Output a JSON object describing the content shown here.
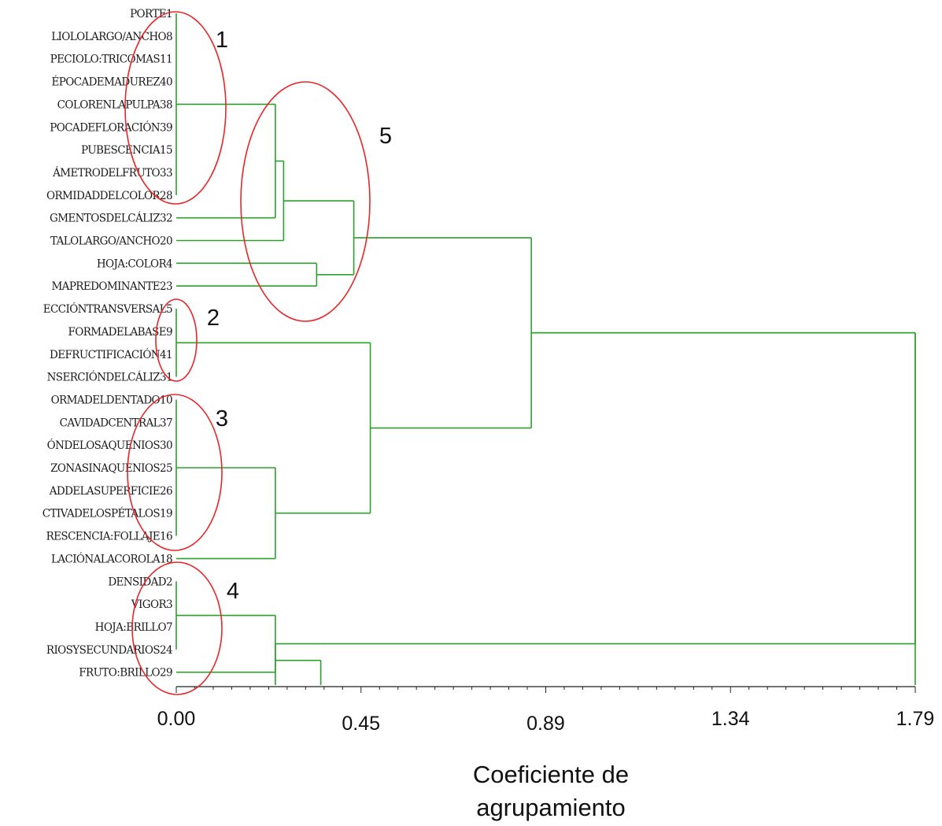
{
  "chart_data": {
    "type": "dendrogram",
    "xlabel_lines": [
      "Coeficiente de",
      "agrupamiento"
    ],
    "xlim": [
      0,
      1.79
    ],
    "x_ticks": [
      "0.00",
      "0.45",
      "0.89",
      "1.34",
      "1.79"
    ],
    "line_color": "#2ca02c",
    "circle_color": "#e8262a",
    "leaves": [
      "PORTE1",
      "LIOLOLARGO/ANCHO8",
      "PECIOLO:TRICOMAS11",
      "ÉPOCADEMADUREZ40",
      "COLORENLAPULPA38",
      "POCADEFLORACIÓN39",
      "PUBESCENCIA15",
      "ÁMETRODELFRUTO33",
      "ORMIDADDELCOLOR28",
      "GMENTOSDELCÁLIZ32",
      "TALOLARGO/ANCHO20",
      "HOJA:COLOR4",
      "MAPREDOMINANTE23",
      "ECCIÓNTRANSVERSAL5",
      "FORMADELABASE9",
      "DEFRUCTIFICACIÓN41",
      "NSERCIÓNDELCÁLIZ31",
      "ORMADELDENTADO10",
      "CAVIDADCENTRAL37",
      "ÓNDELOSAQUENIOS30",
      "ZONASINAQUENIOS25",
      "ADDELASUPERFICIE26",
      "CTIVADELOSPÉTALOS19",
      "RESCENCIA:FOLLAJE16",
      "LACIÓNALACOROLA18",
      "DENSIDAD2",
      "VIGOR3",
      "HOJA:BRILLO7",
      "RIOSYSECUNDARIOS24",
      "FRUTO:BRILLO29"
    ],
    "merges": [
      {
        "id": "A",
        "children": [
          "L0",
          "L1",
          "L2",
          "L3",
          "L4",
          "L5",
          "L6",
          "L7",
          "L8"
        ],
        "height": 0.0
      },
      {
        "id": "B",
        "children": [
          "A",
          "L9"
        ],
        "height": 0.24
      },
      {
        "id": "C",
        "children": [
          "B",
          "L10"
        ],
        "height": 0.26
      },
      {
        "id": "D",
        "children": [
          "L11",
          "L12"
        ],
        "height": 0.34
      },
      {
        "id": "E",
        "children": [
          "C",
          "D"
        ],
        "height": 0.43
      },
      {
        "id": "F",
        "children": [
          "L13",
          "L14",
          "L15",
          "L16"
        ],
        "height": 0.0
      },
      {
        "id": "G",
        "children": [
          "L17",
          "L18",
          "L19",
          "L20",
          "L21",
          "L22",
          "L23"
        ],
        "height": 0.0
      },
      {
        "id": "H",
        "children": [
          "G",
          "L24"
        ],
        "height": 0.24
      },
      {
        "id": "I",
        "children": [
          "F",
          "H"
        ],
        "height": 0.47
      },
      {
        "id": "J",
        "children": [
          "E",
          "I"
        ],
        "height": 0.86
      },
      {
        "id": "K",
        "children": [
          "L25",
          "L26",
          "L27",
          "L28"
        ],
        "height": 0.0
      },
      {
        "id": "M",
        "children": [
          "K",
          "L29"
        ],
        "height": 0.24
      },
      {
        "id": "N",
        "children": [
          "M"
        ],
        "height": 0.35
      },
      {
        "id": "R",
        "children": [
          "J",
          "N"
        ],
        "height": 1.79
      }
    ],
    "cluster_annotations": [
      {
        "label": "1",
        "leaves_from": 0,
        "leaves_to": 8
      },
      {
        "label": "2",
        "leaves_from": 13,
        "leaves_to": 16
      },
      {
        "label": "3",
        "leaves_from": 17,
        "leaves_to": 23
      },
      {
        "label": "4",
        "leaves_from": 25,
        "leaves_to": 29
      },
      {
        "label": "5",
        "leaves_from": 0,
        "leaves_to": 12
      }
    ]
  }
}
